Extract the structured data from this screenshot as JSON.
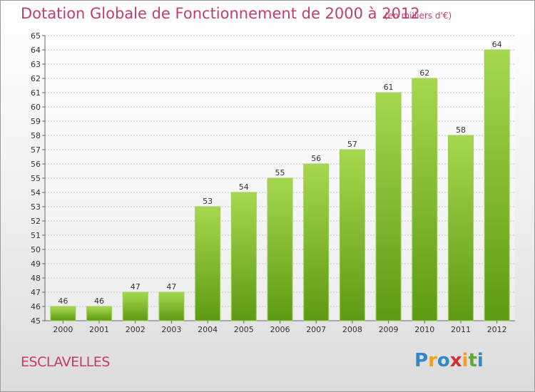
{
  "header": {
    "title": "Dotation Globale de Fonctionnement de 2000 à 2012",
    "unit": "(en milliers d'€)"
  },
  "footer": {
    "commune": "ESCLAVELLES",
    "logo_letters": [
      {
        "ch": "P",
        "color": "#2f88c8"
      },
      {
        "ch": "r",
        "color": "#f0a020"
      },
      {
        "ch": "o",
        "color": "#2f88c8"
      },
      {
        "ch": "x",
        "color": "#d03030"
      },
      {
        "ch": "i",
        "color": "#f0a020"
      },
      {
        "ch": "t",
        "color": "#60a830"
      },
      {
        "ch": "i",
        "color": "#2f88c8"
      }
    ]
  },
  "chart_data": {
    "type": "bar",
    "title": "Dotation Globale de Fonctionnement de 2000 à 2012",
    "subtitle": "(en milliers d'€)",
    "categories": [
      "2000",
      "2001",
      "2002",
      "2003",
      "2004",
      "2005",
      "2006",
      "2007",
      "2008",
      "2009",
      "2010",
      "2011",
      "2012"
    ],
    "values": [
      46,
      46,
      47,
      47,
      53,
      54,
      55,
      56,
      57,
      61,
      62,
      58,
      64
    ],
    "ylim": [
      45,
      65
    ],
    "yticks": [
      45,
      46,
      47,
      48,
      49,
      50,
      51,
      52,
      53,
      54,
      55,
      56,
      57,
      58,
      59,
      60,
      61,
      62,
      63,
      64,
      65
    ],
    "grid": true,
    "bar_color": "#7fbf2f",
    "bar_color_light": "#a6d84e",
    "bar_color_dark": "#5e9a12"
  }
}
